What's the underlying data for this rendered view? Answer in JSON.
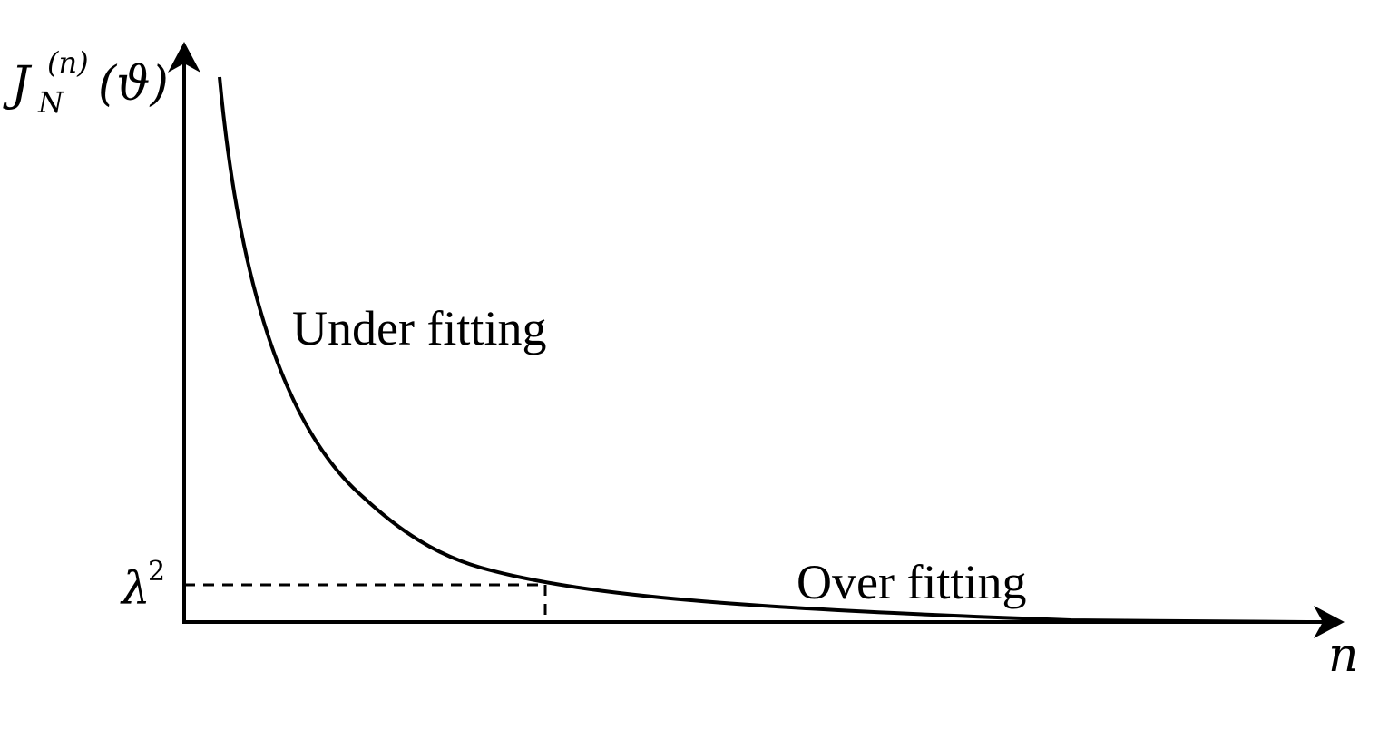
{
  "axes": {
    "y_label_main": "J",
    "y_label_sub": "N",
    "y_label_sup": "(n)",
    "y_label_arg": "(ϑ)",
    "x_label": "n",
    "threshold_symbol": "λ",
    "threshold_exponent": "2"
  },
  "annotations": {
    "under_fitting": "Under fitting",
    "over_fitting": "Over fitting"
  },
  "colors": {
    "line": "#000000",
    "background": "#ffffff"
  }
}
